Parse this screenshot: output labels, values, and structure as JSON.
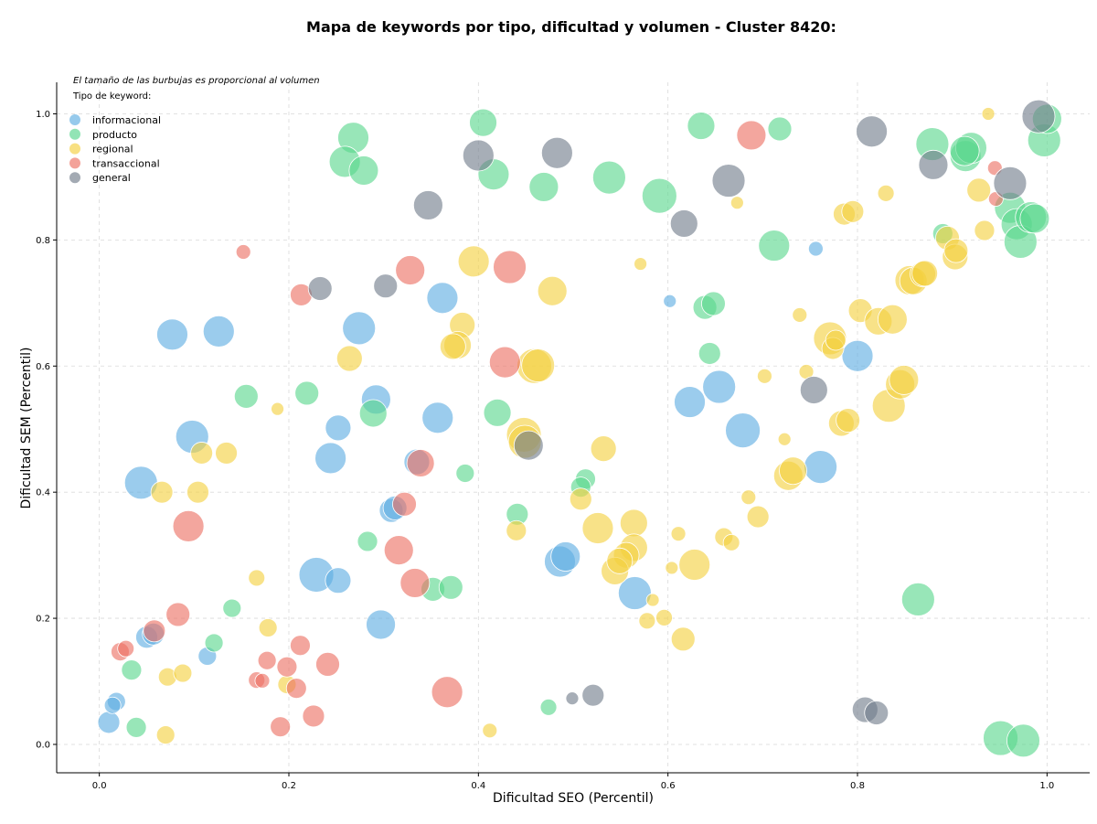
{
  "chart_data": {
    "type": "scatter",
    "title": "Mapa de keywords por tipo, dificultad y volumen - Cluster 8420:",
    "note": "El tamaño de las burbujas es proporcional al volumen",
    "legend_title": "Tipo de keyword:",
    "legend_position": "top-left",
    "xlabel": "Dificultad SEO (Percentil)",
    "ylabel": "Dificultad SEM (Percentil)",
    "xlim": [
      -0.045,
      1.045
    ],
    "ylim": [
      -0.045,
      1.05
    ],
    "xticks": [
      "0.0",
      "0.2",
      "0.4",
      "0.6",
      "0.8",
      "1.0"
    ],
    "yticks": [
      "0.0",
      "0.2",
      "0.4",
      "0.6",
      "0.8",
      "1.0"
    ],
    "grid": true,
    "size_scale": "relative",
    "series": [
      {
        "name": "informacional",
        "color": "#5DADE2",
        "points": [
          [
            0.077,
            0.65,
            17
          ],
          [
            0.126,
            0.655,
            17
          ],
          [
            0.274,
            0.66,
            18
          ],
          [
            0.362,
            0.708,
            17
          ],
          [
            0.098,
            0.488,
            18
          ],
          [
            0.044,
            0.415,
            18
          ],
          [
            0.292,
            0.547,
            16
          ],
          [
            0.252,
            0.502,
            14
          ],
          [
            0.357,
            0.518,
            17
          ],
          [
            0.244,
            0.454,
            17
          ],
          [
            0.335,
            0.448,
            14
          ],
          [
            0.308,
            0.371,
            13
          ],
          [
            0.312,
            0.375,
            13
          ],
          [
            0.229,
            0.269,
            19
          ],
          [
            0.252,
            0.26,
            14
          ],
          [
            0.297,
            0.19,
            16
          ],
          [
            0.05,
            0.17,
            12
          ],
          [
            0.057,
            0.175,
            12
          ],
          [
            0.114,
            0.14,
            10
          ],
          [
            0.01,
            0.035,
            12
          ],
          [
            0.018,
            0.068,
            10
          ],
          [
            0.014,
            0.062,
            9
          ],
          [
            0.486,
            0.29,
            17
          ],
          [
            0.492,
            0.298,
            16
          ],
          [
            0.565,
            0.24,
            18
          ],
          [
            0.623,
            0.543,
            17
          ],
          [
            0.654,
            0.567,
            18
          ],
          [
            0.679,
            0.498,
            19
          ],
          [
            0.761,
            0.44,
            18
          ],
          [
            0.8,
            0.616,
            17
          ],
          [
            0.602,
            0.703,
            7
          ],
          [
            0.756,
            0.786,
            8
          ]
        ]
      },
      {
        "name": "producto",
        "color": "#58D68D",
        "points": [
          [
            0.268,
            0.962,
            17
          ],
          [
            0.259,
            0.924,
            17
          ],
          [
            0.279,
            0.91,
            16
          ],
          [
            0.405,
            0.986,
            15
          ],
          [
            0.416,
            0.904,
            17
          ],
          [
            0.469,
            0.884,
            16
          ],
          [
            0.538,
            0.899,
            18
          ],
          [
            0.591,
            0.87,
            19
          ],
          [
            0.635,
            0.981,
            15
          ],
          [
            0.718,
            0.976,
            13
          ],
          [
            0.712,
            0.791,
            17
          ],
          [
            0.639,
            0.693,
            13
          ],
          [
            0.648,
            0.699,
            13
          ],
          [
            0.644,
            0.62,
            12
          ],
          [
            0.155,
            0.552,
            13
          ],
          [
            0.219,
            0.557,
            13
          ],
          [
            0.289,
            0.525,
            15
          ],
          [
            0.42,
            0.526,
            15
          ],
          [
            0.386,
            0.43,
            10
          ],
          [
            0.513,
            0.421,
            11
          ],
          [
            0.508,
            0.408,
            11
          ],
          [
            0.441,
            0.365,
            12
          ],
          [
            0.283,
            0.322,
            11
          ],
          [
            0.352,
            0.246,
            13
          ],
          [
            0.371,
            0.249,
            13
          ],
          [
            0.121,
            0.161,
            10
          ],
          [
            0.14,
            0.216,
            10
          ],
          [
            0.034,
            0.118,
            11
          ],
          [
            0.039,
            0.027,
            11
          ],
          [
            0.474,
            0.059,
            9
          ],
          [
            0.864,
            0.23,
            18
          ],
          [
            0.951,
            0.01,
            19
          ],
          [
            0.975,
            0.006,
            18
          ],
          [
            0.879,
            0.952,
            18
          ],
          [
            0.914,
            0.933,
            17
          ],
          [
            0.92,
            0.946,
            17
          ],
          [
            0.913,
            0.941,
            16
          ],
          [
            0.961,
            0.851,
            17
          ],
          [
            0.968,
            0.825,
            17
          ],
          [
            0.972,
            0.797,
            18
          ],
          [
            0.983,
            0.836,
            17
          ],
          [
            0.987,
            0.834,
            16
          ],
          [
            0.997,
            0.958,
            18
          ],
          [
            1.0,
            0.992,
            16
          ],
          [
            0.89,
            0.81,
            11
          ]
        ]
      },
      {
        "name": "regional",
        "color": "#F4D03F",
        "points": [
          [
            0.395,
            0.766,
            17
          ],
          [
            0.383,
            0.665,
            14
          ],
          [
            0.378,
            0.633,
            15
          ],
          [
            0.373,
            0.631,
            14
          ],
          [
            0.478,
            0.719,
            16
          ],
          [
            0.264,
            0.612,
            14
          ],
          [
            0.448,
            0.491,
            19
          ],
          [
            0.449,
            0.48,
            18
          ],
          [
            0.459,
            0.6,
            19
          ],
          [
            0.463,
            0.601,
            18
          ],
          [
            0.532,
            0.469,
            14
          ],
          [
            0.508,
            0.389,
            12
          ],
          [
            0.526,
            0.343,
            17
          ],
          [
            0.564,
            0.351,
            15
          ],
          [
            0.564,
            0.312,
            15
          ],
          [
            0.556,
            0.3,
            14
          ],
          [
            0.544,
            0.275,
            15
          ],
          [
            0.549,
            0.291,
            14
          ],
          [
            0.628,
            0.285,
            17
          ],
          [
            0.44,
            0.339,
            11
          ],
          [
            0.412,
            0.022,
            8
          ],
          [
            0.584,
            0.229,
            7
          ],
          [
            0.596,
            0.201,
            9
          ],
          [
            0.578,
            0.196,
            9
          ],
          [
            0.616,
            0.167,
            13
          ],
          [
            0.604,
            0.28,
            7
          ],
          [
            0.611,
            0.334,
            8
          ],
          [
            0.659,
            0.329,
            10
          ],
          [
            0.667,
            0.32,
            9
          ],
          [
            0.685,
            0.392,
            8
          ],
          [
            0.695,
            0.361,
            12
          ],
          [
            0.702,
            0.584,
            8
          ],
          [
            0.723,
            0.484,
            7
          ],
          [
            0.727,
            0.426,
            16
          ],
          [
            0.732,
            0.434,
            15
          ],
          [
            0.739,
            0.681,
            8
          ],
          [
            0.746,
            0.591,
            8
          ],
          [
            0.771,
            0.644,
            18
          ],
          [
            0.774,
            0.628,
            12
          ],
          [
            0.777,
            0.641,
            11
          ],
          [
            0.783,
            0.509,
            14
          ],
          [
            0.79,
            0.514,
            13
          ],
          [
            0.786,
            0.841,
            12
          ],
          [
            0.795,
            0.845,
            12
          ],
          [
            0.803,
            0.688,
            13
          ],
          [
            0.822,
            0.671,
            15
          ],
          [
            0.833,
            0.537,
            18
          ],
          [
            0.837,
            0.674,
            16
          ],
          [
            0.845,
            0.571,
            16
          ],
          [
            0.849,
            0.578,
            16
          ],
          [
            0.855,
            0.736,
            16
          ],
          [
            0.859,
            0.735,
            15
          ],
          [
            0.869,
            0.746,
            14
          ],
          [
            0.871,
            0.747,
            14
          ],
          [
            0.895,
            0.803,
            13
          ],
          [
            0.903,
            0.773,
            14
          ],
          [
            0.904,
            0.783,
            13
          ],
          [
            0.928,
            0.879,
            13
          ],
          [
            0.934,
            0.815,
            11
          ],
          [
            0.83,
            0.874,
            9
          ],
          [
            0.673,
            0.859,
            7
          ],
          [
            0.571,
            0.762,
            7
          ],
          [
            0.938,
            1.0,
            7
          ],
          [
            0.066,
            0.4,
            12
          ],
          [
            0.072,
            0.107,
            10
          ],
          [
            0.104,
            0.4,
            12
          ],
          [
            0.108,
            0.462,
            12
          ],
          [
            0.134,
            0.462,
            12
          ],
          [
            0.088,
            0.113,
            10
          ],
          [
            0.166,
            0.264,
            9
          ],
          [
            0.178,
            0.185,
            10
          ],
          [
            0.188,
            0.532,
            7
          ],
          [
            0.07,
            0.015,
            10
          ],
          [
            0.198,
            0.095,
            10
          ]
        ]
      },
      {
        "name": "transaccional",
        "color": "#EC7063",
        "points": [
          [
            0.152,
            0.781,
            8
          ],
          [
            0.213,
            0.713,
            12
          ],
          [
            0.328,
            0.752,
            16
          ],
          [
            0.433,
            0.757,
            18
          ],
          [
            0.428,
            0.606,
            17
          ],
          [
            0.339,
            0.446,
            15
          ],
          [
            0.322,
            0.381,
            13
          ],
          [
            0.316,
            0.308,
            16
          ],
          [
            0.333,
            0.256,
            16
          ],
          [
            0.094,
            0.346,
            17
          ],
          [
            0.083,
            0.206,
            13
          ],
          [
            0.058,
            0.18,
            12
          ],
          [
            0.022,
            0.147,
            10
          ],
          [
            0.028,
            0.152,
            9
          ],
          [
            0.166,
            0.102,
            9
          ],
          [
            0.172,
            0.101,
            8
          ],
          [
            0.177,
            0.133,
            10
          ],
          [
            0.191,
            0.028,
            11
          ],
          [
            0.198,
            0.123,
            11
          ],
          [
            0.208,
            0.089,
            11
          ],
          [
            0.212,
            0.157,
            11
          ],
          [
            0.226,
            0.045,
            12
          ],
          [
            0.241,
            0.127,
            13
          ],
          [
            0.367,
            0.083,
            17
          ],
          [
            0.688,
            0.966,
            16
          ],
          [
            0.945,
            0.914,
            8
          ],
          [
            0.946,
            0.865,
            8
          ]
        ]
      },
      {
        "name": "general",
        "color": "#717D8A",
        "points": [
          [
            0.233,
            0.723,
            13
          ],
          [
            0.302,
            0.727,
            13
          ],
          [
            0.347,
            0.855,
            16
          ],
          [
            0.4,
            0.934,
            17
          ],
          [
            0.483,
            0.938,
            17
          ],
          [
            0.453,
            0.474,
            16
          ],
          [
            0.617,
            0.826,
            15
          ],
          [
            0.664,
            0.894,
            18
          ],
          [
            0.754,
            0.562,
            15
          ],
          [
            0.815,
            0.972,
            17
          ],
          [
            0.88,
            0.919,
            16
          ],
          [
            0.961,
            0.89,
            18
          ],
          [
            0.991,
            0.996,
            18
          ],
          [
            0.808,
            0.055,
            14
          ],
          [
            0.82,
            0.05,
            13
          ],
          [
            0.521,
            0.078,
            12
          ],
          [
            0.499,
            0.073,
            7
          ]
        ]
      }
    ]
  }
}
